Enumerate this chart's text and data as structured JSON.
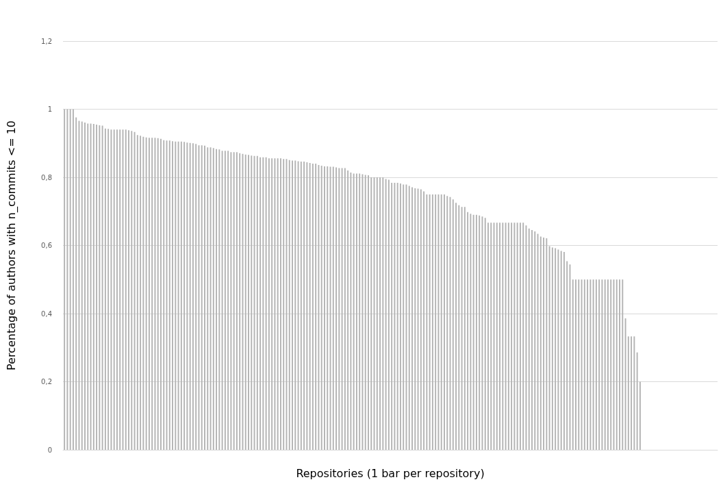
{
  "chart_data": {
    "type": "bar",
    "xlabel": "Repositories (1 bar per repository)",
    "ylabel": "Percentage of authors with n_commits <= 10",
    "categories": [
      null,
      null,
      null,
      null,
      null,
      null,
      null,
      null,
      null,
      null,
      null,
      null,
      null,
      null,
      null,
      null,
      null,
      null,
      null,
      null,
      null,
      null,
      null,
      null,
      null,
      null,
      null,
      null,
      null,
      null,
      null,
      null,
      null,
      null,
      null,
      null,
      null,
      null,
      null,
      null,
      null,
      null,
      null,
      null,
      null,
      null,
      null,
      null,
      null,
      null,
      null,
      null,
      null,
      null,
      null,
      null,
      null,
      null,
      null,
      null,
      null,
      null,
      null,
      null,
      null,
      null,
      null,
      null,
      null,
      null,
      null,
      null,
      null,
      null,
      null,
      null,
      null,
      null,
      null,
      null,
      null,
      null,
      null,
      null,
      null,
      null,
      null,
      null,
      null,
      null,
      null,
      null,
      null,
      null,
      null,
      null,
      null,
      null,
      null,
      null,
      null,
      null,
      null,
      null,
      null,
      null,
      null,
      null,
      null,
      null,
      null,
      null,
      null,
      null,
      null,
      null,
      null,
      null,
      null,
      null,
      null,
      null,
      null,
      null,
      null,
      null,
      null,
      null,
      null,
      null,
      null,
      null,
      null,
      null,
      null,
      null,
      null,
      null,
      null,
      null,
      null,
      null,
      null,
      null,
      null,
      null,
      null,
      null,
      null,
      null,
      null,
      null,
      null,
      null,
      null,
      null,
      null,
      null,
      null,
      null,
      null,
      null,
      null,
      null,
      null,
      null,
      null,
      null,
      null,
      null,
      null,
      null,
      null,
      null,
      null,
      null,
      null,
      null,
      null,
      null,
      null,
      null,
      null,
      null,
      null,
      null,
      null,
      null,
      null,
      null,
      null,
      null,
      null,
      null,
      null,
      null,
      null,
      null,
      null,
      null,
      null,
      null,
      null,
      null,
      null,
      null,
      null,
      null,
      null,
      null,
      null,
      null,
      null,
      null,
      null,
      null,
      null,
      null,
      null,
      null,
      null,
      null,
      null,
      null
    ],
    "values": [
      1,
      1,
      1,
      1,
      0.976,
      0.966,
      0.964,
      0.961,
      0.958,
      0.958,
      0.957,
      0.955,
      0.953,
      0.952,
      0.943,
      0.942,
      0.94,
      0.94,
      0.94,
      0.94,
      0.94,
      0.94,
      0.938,
      0.936,
      0.933,
      0.924,
      0.922,
      0.919,
      0.917,
      0.916,
      0.916,
      0.916,
      0.915,
      0.913,
      0.909,
      0.908,
      0.908,
      0.906,
      0.905,
      0.905,
      0.905,
      0.904,
      0.902,
      0.901,
      0.9,
      0.898,
      0.894,
      0.894,
      0.893,
      0.888,
      0.888,
      0.886,
      0.883,
      0.882,
      0.878,
      0.878,
      0.878,
      0.874,
      0.874,
      0.874,
      0.871,
      0.869,
      0.867,
      0.866,
      0.864,
      0.863,
      0.863,
      0.859,
      0.859,
      0.859,
      0.856,
      0.856,
      0.856,
      0.856,
      0.856,
      0.854,
      0.854,
      0.851,
      0.849,
      0.849,
      0.847,
      0.846,
      0.846,
      0.844,
      0.842,
      0.84,
      0.84,
      0.836,
      0.834,
      0.832,
      0.832,
      0.831,
      0.831,
      0.829,
      0.827,
      0.827,
      0.827,
      0.82,
      0.814,
      0.811,
      0.811,
      0.811,
      0.809,
      0.807,
      0.806,
      0.8,
      0.8,
      0.8,
      0.8,
      0.8,
      0.795,
      0.793,
      0.784,
      0.784,
      0.784,
      0.782,
      0.779,
      0.779,
      0.775,
      0.771,
      0.768,
      0.767,
      0.765,
      0.759,
      0.75,
      0.75,
      0.75,
      0.75,
      0.75,
      0.75,
      0.75,
      0.745,
      0.742,
      0.735,
      0.725,
      0.718,
      0.713,
      0.713,
      0.698,
      0.693,
      0.69,
      0.69,
      0.688,
      0.685,
      0.681,
      0.667,
      0.667,
      0.667,
      0.667,
      0.667,
      0.667,
      0.667,
      0.667,
      0.667,
      0.667,
      0.667,
      0.667,
      0.667,
      0.659,
      0.65,
      0.645,
      0.641,
      0.634,
      0.626,
      0.623,
      0.621,
      0.598,
      0.594,
      0.592,
      0.588,
      0.584,
      0.581,
      0.554,
      0.544,
      0.5,
      0.5,
      0.5,
      0.5,
      0.5,
      0.5,
      0.5,
      0.5,
      0.5,
      0.5,
      0.5,
      0.5,
      0.5,
      0.5,
      0.5,
      0.5,
      0.5,
      0.5,
      0.386,
      0.333,
      0.333,
      0.333,
      0.286,
      0.2,
      null,
      null,
      null,
      null,
      null,
      null,
      null,
      null,
      null,
      null,
      null,
      null,
      null,
      null,
      null,
      null,
      null,
      null,
      null,
      null,
      null,
      null,
      null,
      null,
      null,
      null
    ],
    "color": "#b3b3b3",
    "ylim": [
      0,
      1.2
    ],
    "yticks": [
      0,
      {
        "value": 0.2,
        "label": "0,2"
      },
      {
        "value": 0.4,
        "label": "0,4"
      },
      {
        "value": 0.6,
        "label": "0,6"
      },
      {
        "value": 0.8,
        "label": "0,8"
      },
      1,
      {
        "value": 1.2,
        "label": "1,2"
      }
    ],
    "grid": "y",
    "tick_labels": "y"
  }
}
